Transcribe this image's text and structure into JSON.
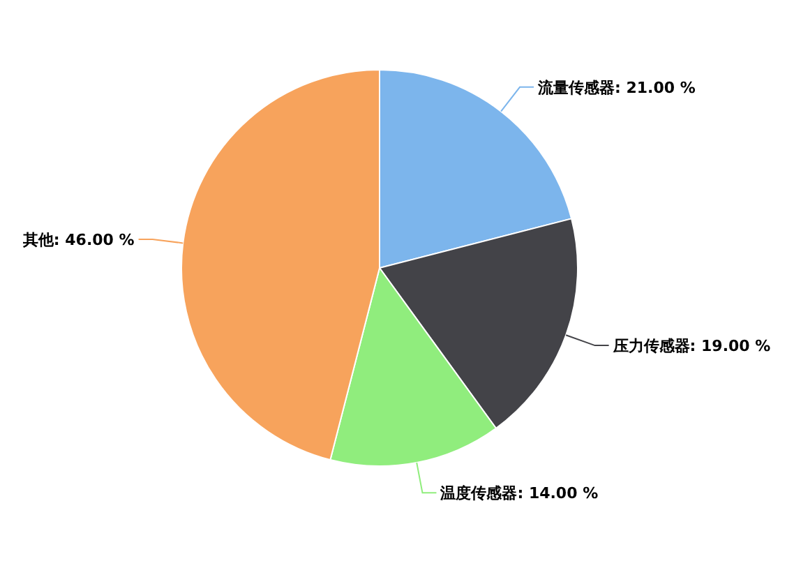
{
  "chart_data": {
    "type": "pie",
    "categories": [
      "流量传感器",
      "压力传感器",
      "温度传感器",
      "其他"
    ],
    "values": [
      21,
      19,
      14,
      46
    ],
    "colors": [
      "#7cb5ec",
      "#434348",
      "#90ed7d",
      "#f7a35c"
    ],
    "value_labels": [
      "21.00 %",
      "19.00 %",
      "14.00 %",
      "46.00 %"
    ]
  }
}
